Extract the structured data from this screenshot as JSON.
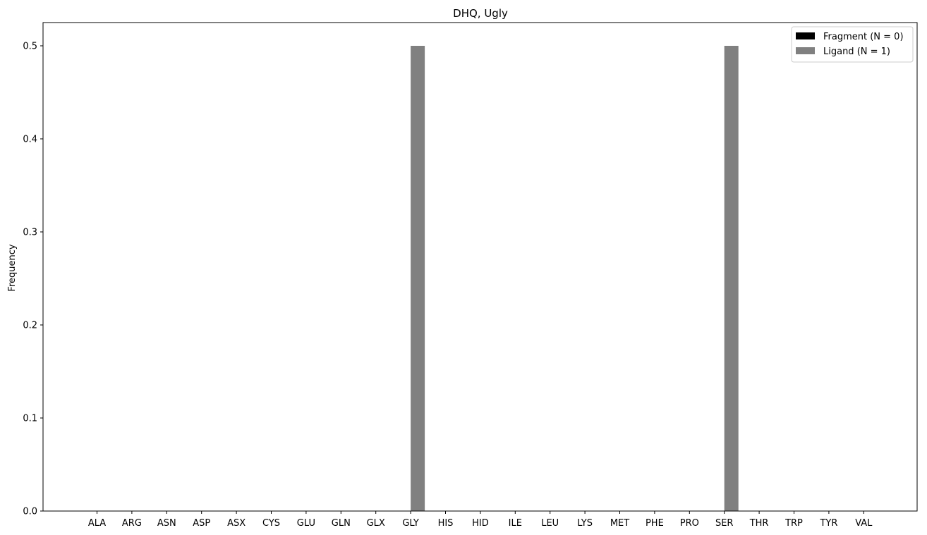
{
  "chart_data": {
    "type": "bar",
    "title": "DHQ, Ugly",
    "xlabel": "",
    "ylabel": "Frequency",
    "ylim": [
      0,
      0.525
    ],
    "yticks": [
      "0.0",
      "0.1",
      "0.2",
      "0.3",
      "0.4",
      "0.5"
    ],
    "grid": false,
    "legend_position": "top-right",
    "categories": [
      "ALA",
      "ARG",
      "ASN",
      "ASP",
      "ASX",
      "CYS",
      "GLU",
      "GLN",
      "GLX",
      "GLY",
      "HIS",
      "HID",
      "ILE",
      "LEU",
      "LYS",
      "MET",
      "PHE",
      "PRO",
      "SER",
      "THR",
      "TRP",
      "TYR",
      "VAL"
    ],
    "series": [
      {
        "name": "Fragment (N = 0)",
        "color": "#000000",
        "values": [
          0,
          0,
          0,
          0,
          0,
          0,
          0,
          0,
          0,
          0,
          0,
          0,
          0,
          0,
          0,
          0,
          0,
          0,
          0,
          0,
          0,
          0,
          0
        ]
      },
      {
        "name": "Ligand (N = 1)",
        "color": "#808080",
        "values": [
          0,
          0,
          0,
          0,
          0,
          0,
          0,
          0,
          0,
          0.5,
          0,
          0,
          0,
          0,
          0,
          0,
          0,
          0,
          0.5,
          0,
          0,
          0,
          0
        ]
      }
    ]
  }
}
